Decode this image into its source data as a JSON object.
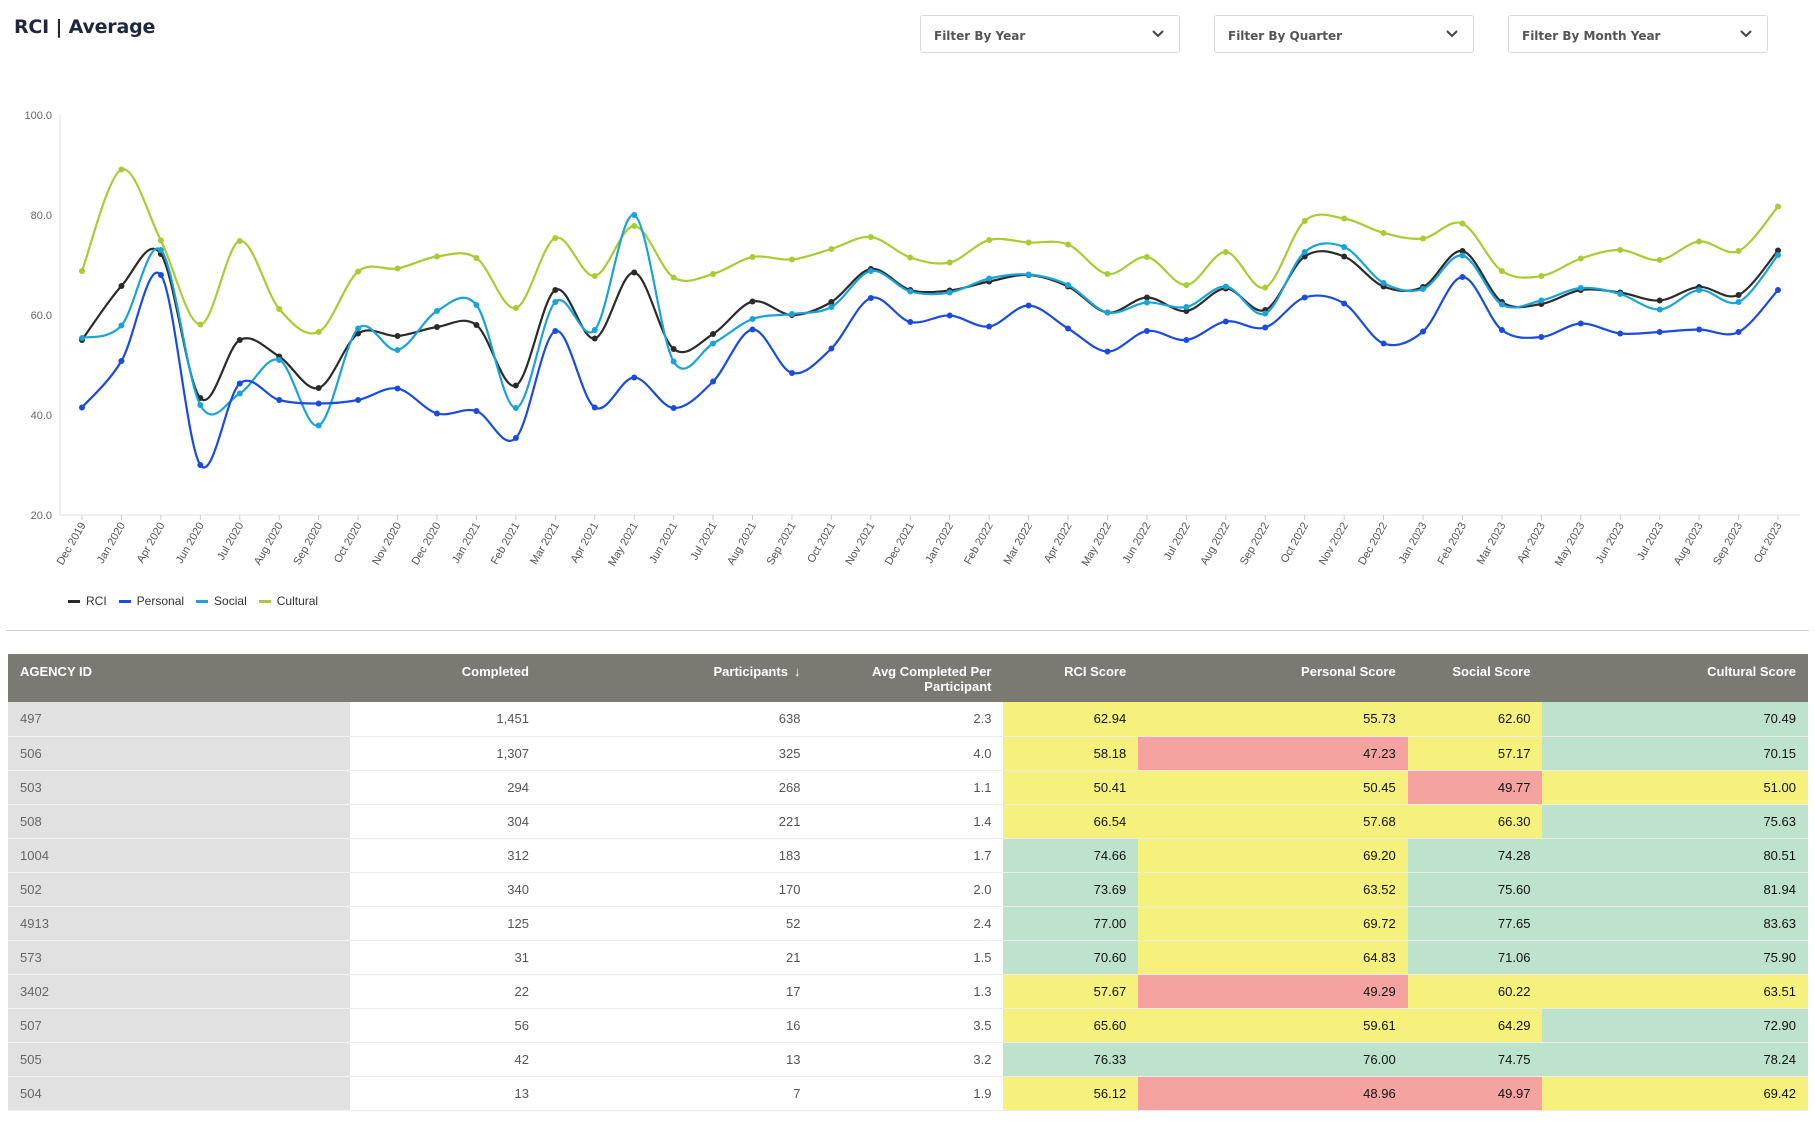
{
  "header": {
    "title": "RCI | Average"
  },
  "filters": [
    {
      "label": "Filter By Year",
      "icon": "chevron-down-icon"
    },
    {
      "label": "Filter By Quarter",
      "icon": "chevron-down-icon"
    },
    {
      "label": "Filter By Month Year",
      "icon": "chevron-down-icon"
    }
  ],
  "colors": {
    "rci": "#2b2b2b",
    "personal": "#1a4be0",
    "social": "#1aa3d9",
    "cultural": "#a8cc32",
    "green": "#bde3cc",
    "yellow": "#f6f17c",
    "red": "#f5a3a0",
    "header_bg": "#7a7a73"
  },
  "chart_data": {
    "type": "line",
    "ylim": [
      20,
      100
    ],
    "yticks": [
      "100.0",
      "80.0",
      "60.0",
      "40.0",
      "20.0"
    ],
    "categories": [
      "Dec 2019",
      "Jan 2020",
      "Apr 2020",
      "Jun 2020",
      "Jul 2020",
      "Aug 2020",
      "Sep 2020",
      "Oct 2020",
      "Nov 2020",
      "Dec 2020",
      "Jan 2021",
      "Feb 2021",
      "Mar 2021",
      "Apr 2021",
      "May 2021",
      "Jun 2021",
      "Jul 2021",
      "Aug 2021",
      "Sep 2021",
      "Oct 2021",
      "Nov 2021",
      "Dec 2021",
      "Jan 2022",
      "Feb 2022",
      "Mar 2022",
      "Apr 2022",
      "May 2022",
      "Jun 2022",
      "Jul 2022",
      "Aug 2022",
      "Sep 2022",
      "Oct 2022",
      "Nov 2022",
      "Dec 2022",
      "Jan 2023",
      "Feb 2023",
      "Mar 2023",
      "Apr 2023",
      "May 2023",
      "Jun 2023",
      "Jul 2023",
      "Aug 2023",
      "Sep 2023",
      "Oct 2023"
    ],
    "series": [
      {
        "name": "RCI",
        "color": "#2b2b2b",
        "values": [
          55.0,
          65.8,
          72.2,
          43.4,
          55.0,
          51.7,
          45.4,
          56.3,
          55.8,
          57.6,
          58.0,
          45.9,
          65.0,
          55.3,
          68.5,
          53.2,
          56.2,
          62.7,
          60.0,
          62.6,
          69.2,
          65.0,
          64.9,
          66.7,
          68.0,
          65.7,
          60.5,
          63.5,
          60.8,
          65.3,
          61.0,
          71.7,
          71.7,
          65.7,
          65.6,
          72.8,
          62.6,
          62.2,
          65.0,
          64.5,
          62.9,
          65.6,
          64.0,
          72.9
        ]
      },
      {
        "name": "Personal",
        "color": "#1a4be0",
        "values": [
          41.5,
          50.8,
          68.0,
          30.0,
          46.3,
          43.0,
          42.3,
          43.0,
          45.3,
          40.3,
          40.8,
          35.4,
          56.8,
          41.5,
          47.5,
          41.4,
          46.7,
          57.1,
          48.4,
          53.3,
          63.4,
          58.6,
          59.9,
          57.7,
          61.9,
          57.3,
          52.7,
          56.8,
          55.0,
          58.7,
          57.5,
          63.5,
          62.3,
          54.3,
          56.7,
          67.6,
          57.0,
          55.6,
          58.3,
          56.3,
          56.6,
          57.1,
          56.6,
          65.0
        ]
      },
      {
        "name": "Social",
        "color": "#1aa3d9",
        "values": [
          55.4,
          57.9,
          73.0,
          42.0,
          44.3,
          51.0,
          37.9,
          57.3,
          53.0,
          60.8,
          62.0,
          41.4,
          62.6,
          57.0,
          80.0,
          50.7,
          54.3,
          59.2,
          60.2,
          61.6,
          68.8,
          64.7,
          64.5,
          67.3,
          68.1,
          66.0,
          60.5,
          62.5,
          61.6,
          65.7,
          60.3,
          72.6,
          73.6,
          66.4,
          65.2,
          71.9,
          62.1,
          62.9,
          65.4,
          64.2,
          61.1,
          65.0,
          62.6,
          72.0
        ]
      },
      {
        "name": "Cultural",
        "color": "#a8cc32",
        "values": [
          68.8,
          89.1,
          74.9,
          58.1,
          74.8,
          61.2,
          56.6,
          68.7,
          69.3,
          71.7,
          71.4,
          61.4,
          75.4,
          67.8,
          77.8,
          67.5,
          68.2,
          71.6,
          71.1,
          73.2,
          75.6,
          71.5,
          70.5,
          75.0,
          74.5,
          74.1,
          68.2,
          71.6,
          66.0,
          72.6,
          65.5,
          78.8,
          79.3,
          76.4,
          75.3,
          78.3,
          68.8,
          67.8,
          71.3,
          73.0,
          71.0,
          74.7,
          72.8,
          81.7
        ]
      }
    ]
  },
  "table": {
    "headers": [
      "AGENCY ID",
      "Completed",
      "Participants",
      "Avg Completed Per Participant",
      "RCI Score",
      "Personal Score",
      "Social Score",
      "Cultural Score"
    ],
    "sort_icon": "arrow-down-icon",
    "rows": [
      {
        "id": "497",
        "completed": "1,451",
        "participants": "638",
        "avg": "2.3",
        "rci": "62.94",
        "personal": "55.73",
        "social": "62.60",
        "cultural": "70.49",
        "c": [
          "yellow",
          "yellow",
          "yellow",
          "green"
        ]
      },
      {
        "id": "506",
        "completed": "1,307",
        "participants": "325",
        "avg": "4.0",
        "rci": "58.18",
        "personal": "47.23",
        "social": "57.17",
        "cultural": "70.15",
        "c": [
          "yellow",
          "red",
          "yellow",
          "green"
        ]
      },
      {
        "id": "503",
        "completed": "294",
        "participants": "268",
        "avg": "1.1",
        "rci": "50.41",
        "personal": "50.45",
        "social": "49.77",
        "cultural": "51.00",
        "c": [
          "yellow",
          "yellow",
          "red",
          "yellow"
        ]
      },
      {
        "id": "508",
        "completed": "304",
        "participants": "221",
        "avg": "1.4",
        "rci": "66.54",
        "personal": "57.68",
        "social": "66.30",
        "cultural": "75.63",
        "c": [
          "yellow",
          "yellow",
          "yellow",
          "green"
        ]
      },
      {
        "id": "1004",
        "completed": "312",
        "participants": "183",
        "avg": "1.7",
        "rci": "74.66",
        "personal": "69.20",
        "social": "74.28",
        "cultural": "80.51",
        "c": [
          "green",
          "yellow",
          "green",
          "green"
        ]
      },
      {
        "id": "502",
        "completed": "340",
        "participants": "170",
        "avg": "2.0",
        "rci": "73.69",
        "personal": "63.52",
        "social": "75.60",
        "cultural": "81.94",
        "c": [
          "green",
          "yellow",
          "green",
          "green"
        ]
      },
      {
        "id": "4913",
        "completed": "125",
        "participants": "52",
        "avg": "2.4",
        "rci": "77.00",
        "personal": "69.72",
        "social": "77.65",
        "cultural": "83.63",
        "c": [
          "green",
          "yellow",
          "green",
          "green"
        ]
      },
      {
        "id": "573",
        "completed": "31",
        "participants": "21",
        "avg": "1.5",
        "rci": "70.60",
        "personal": "64.83",
        "social": "71.06",
        "cultural": "75.90",
        "c": [
          "green",
          "yellow",
          "green",
          "green"
        ]
      },
      {
        "id": "3402",
        "completed": "22",
        "participants": "17",
        "avg": "1.3",
        "rci": "57.67",
        "personal": "49.29",
        "social": "60.22",
        "cultural": "63.51",
        "c": [
          "yellow",
          "red",
          "yellow",
          "yellow"
        ]
      },
      {
        "id": "507",
        "completed": "56",
        "participants": "16",
        "avg": "3.5",
        "rci": "65.60",
        "personal": "59.61",
        "social": "64.29",
        "cultural": "72.90",
        "c": [
          "yellow",
          "yellow",
          "yellow",
          "green"
        ]
      },
      {
        "id": "505",
        "completed": "42",
        "participants": "13",
        "avg": "3.2",
        "rci": "76.33",
        "personal": "76.00",
        "social": "74.75",
        "cultural": "78.24",
        "c": [
          "green",
          "green",
          "green",
          "green"
        ]
      },
      {
        "id": "504",
        "completed": "13",
        "participants": "7",
        "avg": "1.9",
        "rci": "56.12",
        "personal": "48.96",
        "social": "49.97",
        "cultural": "69.42",
        "c": [
          "yellow",
          "red",
          "red",
          "yellow"
        ]
      }
    ]
  }
}
